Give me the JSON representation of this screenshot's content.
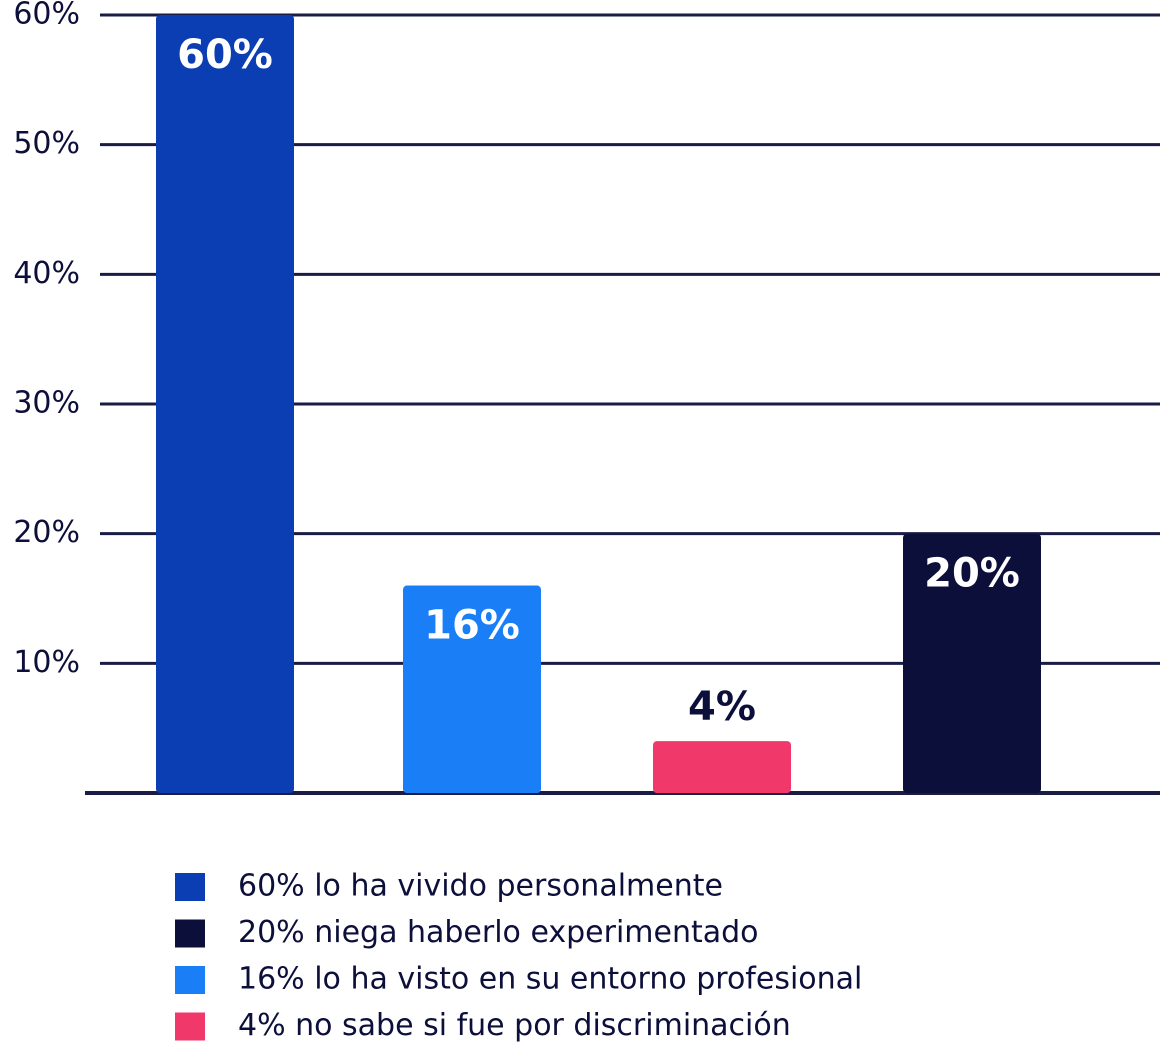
{
  "chart_data": {
    "type": "bar",
    "categories": [
      null,
      null,
      null,
      null
    ],
    "values": [
      60,
      16,
      4,
      20
    ],
    "value_labels": [
      "60%",
      "16%",
      "4%",
      "20%"
    ],
    "colors": [
      "#0b3db3",
      "#1a7ff7",
      "#f0386b",
      "#0c0f3a"
    ],
    "ylim": [
      0,
      60
    ],
    "yticks": [
      {
        "value": 10,
        "label": "10%"
      },
      {
        "value": 20,
        "label": "20%"
      },
      {
        "value": 30,
        "label": "30%"
      },
      {
        "value": 40,
        "label": "40%"
      },
      {
        "value": 50,
        "label": "50%"
      },
      {
        "value": 60,
        "label": "60%"
      }
    ],
    "grid": true,
    "legend": [
      {
        "label": "60% lo ha vivido personalmente",
        "color": "#0b3db3"
      },
      {
        "label": "20% niega haberlo experimentado",
        "color": "#0c0f3a"
      },
      {
        "label": "16% lo ha visto en su entorno profesional",
        "color": "#1a7ff7"
      },
      {
        "label": "4% no sabe si fue por discriminación",
        "color": "#f0386b"
      }
    ]
  }
}
